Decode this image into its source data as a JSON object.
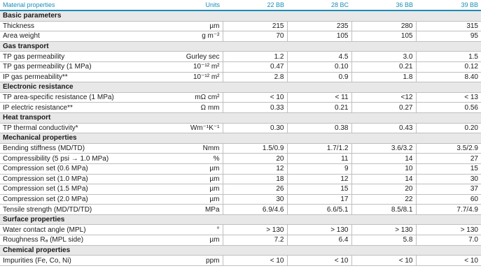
{
  "header": {
    "material_properties": "Material properties",
    "units": "Units",
    "grades": [
      "22 BB",
      "28 BC",
      "36 BB",
      "39 BB"
    ]
  },
  "sections": [
    {
      "title": "Basic parameters",
      "rows": [
        {
          "label": "Thickness",
          "unit": "µm",
          "values": [
            "215",
            "235",
            "280",
            "315"
          ]
        },
        {
          "label": "Area weight",
          "unit": "g m⁻²",
          "values": [
            "70",
            "105",
            "105",
            "95"
          ]
        }
      ]
    },
    {
      "title": "Gas transport",
      "rows": [
        {
          "label": "TP gas permeability",
          "unit": "Gurley sec",
          "values": [
            "1.2",
            "4.5",
            "3.0",
            "1.5"
          ]
        },
        {
          "label": "TP gas permeability (1 MPa)",
          "unit": "10⁻¹² m²",
          "values": [
            "0.47",
            "0.10",
            "0.21",
            "0.12"
          ]
        },
        {
          "label": "IP gas permeability**",
          "unit": "10⁻¹² m²",
          "values": [
            "2.8",
            "0.9",
            "1.8",
            "8.40"
          ]
        }
      ]
    },
    {
      "title": "Electronic resistance",
      "rows": [
        {
          "label": "TP area-specific resistance (1 MPa)",
          "unit": "mΩ cm²",
          "values": [
            "< 10",
            "< 11",
            "<12",
            "< 13"
          ]
        },
        {
          "label": "IP electric resistance**",
          "unit": "Ω mm",
          "values": [
            "0.33",
            "0.21",
            "0.27",
            "0.56"
          ]
        }
      ]
    },
    {
      "title": "Heat transport",
      "rows": [
        {
          "label": "TP thermal conductivity*",
          "unit": "Wm⁻¹K⁻¹",
          "values": [
            "0.30",
            "0.38",
            "0.43",
            "0.20"
          ]
        }
      ]
    },
    {
      "title": "Mechanical properties",
      "rows": [
        {
          "label": "Bending stiffness (MD/TD)",
          "unit": "Nmm",
          "values": [
            "1.5/0.9",
            "1.7/1.2",
            "3.6/3.2",
            "3.5/2.9"
          ]
        },
        {
          "label": "Compressibility (5 psi → 1.0 MPa)",
          "unit": "%",
          "values": [
            "20",
            "11",
            "14",
            "27"
          ]
        },
        {
          "label": "Compression set (0.6 MPa)",
          "unit": "µm",
          "values": [
            "12",
            "9",
            "10",
            "15"
          ]
        },
        {
          "label": "Compression set (1.0 MPa)",
          "unit": "µm",
          "values": [
            "18",
            "12",
            "14",
            "30"
          ]
        },
        {
          "label": "Compression set (1.5 MPa)",
          "unit": "µm",
          "values": [
            "26",
            "15",
            "20",
            "37"
          ]
        },
        {
          "label": "Compression set (2.0 MPa)",
          "unit": "µm",
          "values": [
            "30",
            "17",
            "22",
            "60"
          ]
        },
        {
          "label": "Tensile strength (MD/TD/TD)",
          "unit": "MPa",
          "values": [
            "6.9/4.6",
            "6.6/5.1",
            "8.5/8.1",
            "7.7/4.9"
          ]
        }
      ]
    },
    {
      "title": "Surface properties",
      "rows": [
        {
          "label": "Water contact angle (MPL)",
          "unit": "°",
          "values": [
            "> 130",
            "> 130",
            "> 130",
            "> 130"
          ]
        },
        {
          "label": "Roughness Rₐ (MPL side)",
          "unit": "µm",
          "values": [
            "7.2",
            "6.4",
            "5.8",
            "7.0"
          ]
        }
      ]
    },
    {
      "title": "Chemical properties",
      "rows": [
        {
          "label": "Impurities (Fe, Co, Ni)",
          "unit": "ppm",
          "values": [
            "< 10",
            "< 10",
            "< 10",
            "< 10"
          ]
        }
      ]
    }
  ]
}
